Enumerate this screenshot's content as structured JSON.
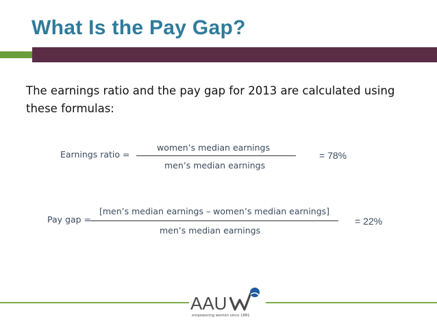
{
  "slide": {
    "title": "What Is the Pay Gap?",
    "intro": "The earnings ratio and the pay gap for 2013 are calculated using these formulas:"
  },
  "formulas": {
    "earnings_ratio": {
      "label": "Earnings ratio =",
      "numerator": "women’s median earnings",
      "denominator": "men’s median earnings",
      "result": "= 78%"
    },
    "pay_gap": {
      "label": "Pay gap =",
      "numerator": "[men’s median earnings – women’s median earnings]",
      "denominator": "men’s median earnings",
      "result": "= 22%"
    }
  },
  "logo": {
    "name": "AAUW",
    "tagline": "empowering women since 1881"
  },
  "colors": {
    "title": "#2e7b9b",
    "bar_plum": "#5a2d45",
    "bar_green": "#6a9e3a",
    "text": "#3a4a5c",
    "logo_gray": "#4a4a4a",
    "logo_blue": "#1f5aa0"
  }
}
